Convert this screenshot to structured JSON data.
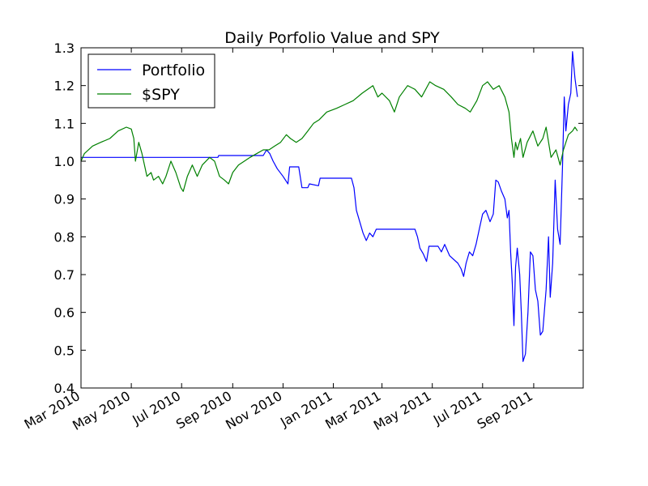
{
  "chart_data": {
    "type": "line",
    "title": "Daily Porfolio Value and SPY",
    "xlabel": "",
    "ylabel": "",
    "ylim": [
      0.4,
      1.3
    ],
    "yticks": [
      "0.4",
      "0.5",
      "0.6",
      "0.7",
      "0.8",
      "0.9",
      "1.0",
      "1.1",
      "1.2",
      "1.3"
    ],
    "xlim": [
      "2010-03-01",
      "2011-10-31"
    ],
    "xticks": [
      {
        "date": "2010-03-01",
        "label": "Mar 2010"
      },
      {
        "date": "2010-05-01",
        "label": "May 2010"
      },
      {
        "date": "2010-07-01",
        "label": "Jul 2010"
      },
      {
        "date": "2010-09-01",
        "label": "Sep 2010"
      },
      {
        "date": "2010-11-01",
        "label": "Nov 2010"
      },
      {
        "date": "2011-01-01",
        "label": "Jan 2011"
      },
      {
        "date": "2011-03-01",
        "label": "Mar 2011"
      },
      {
        "date": "2011-05-01",
        "label": "May 2011"
      },
      {
        "date": "2011-07-01",
        "label": "Jul 2011"
      },
      {
        "date": "2011-09-01",
        "label": "Sep 2011"
      }
    ],
    "grid": false,
    "legend_position": "top-left",
    "series": [
      {
        "name": "Portfolio",
        "color": "#0000ff",
        "points": [
          [
            "2010-03-01",
            1.01
          ],
          [
            "2010-08-14",
            1.01
          ],
          [
            "2010-08-15",
            1.015
          ],
          [
            "2010-10-08",
            1.015
          ],
          [
            "2010-10-12",
            1.03
          ],
          [
            "2010-10-16",
            1.02
          ],
          [
            "2010-10-20",
            1.0
          ],
          [
            "2010-10-25",
            0.98
          ],
          [
            "2010-11-01",
            0.96
          ],
          [
            "2010-11-07",
            0.94
          ],
          [
            "2010-11-09",
            0.985
          ],
          [
            "2010-11-20",
            0.985
          ],
          [
            "2010-11-24",
            0.93
          ],
          [
            "2010-12-01",
            0.93
          ],
          [
            "2010-12-03",
            0.94
          ],
          [
            "2010-12-14",
            0.935
          ],
          [
            "2010-12-16",
            0.955
          ],
          [
            "2011-01-23",
            0.955
          ],
          [
            "2011-01-26",
            0.93
          ],
          [
            "2011-01-29",
            0.87
          ],
          [
            "2011-02-02",
            0.84
          ],
          [
            "2011-02-06",
            0.81
          ],
          [
            "2011-02-10",
            0.79
          ],
          [
            "2011-02-14",
            0.81
          ],
          [
            "2011-02-18",
            0.8
          ],
          [
            "2011-02-22",
            0.82
          ],
          [
            "2011-04-10",
            0.82
          ],
          [
            "2011-04-13",
            0.8
          ],
          [
            "2011-04-16",
            0.77
          ],
          [
            "2011-04-20",
            0.755
          ],
          [
            "2011-04-24",
            0.735
          ],
          [
            "2011-04-27",
            0.775
          ],
          [
            "2011-05-08",
            0.775
          ],
          [
            "2011-05-12",
            0.76
          ],
          [
            "2011-05-16",
            0.78
          ],
          [
            "2011-05-22",
            0.75
          ],
          [
            "2011-06-01",
            0.73
          ],
          [
            "2011-06-05",
            0.715
          ],
          [
            "2011-06-08",
            0.695
          ],
          [
            "2011-06-11",
            0.73
          ],
          [
            "2011-06-15",
            0.76
          ],
          [
            "2011-06-19",
            0.75
          ],
          [
            "2011-06-23",
            0.78
          ],
          [
            "2011-06-27",
            0.82
          ],
          [
            "2011-07-01",
            0.86
          ],
          [
            "2011-07-05",
            0.87
          ],
          [
            "2011-07-10",
            0.84
          ],
          [
            "2011-07-14",
            0.86
          ],
          [
            "2011-07-17",
            0.95
          ],
          [
            "2011-07-20",
            0.945
          ],
          [
            "2011-07-24",
            0.92
          ],
          [
            "2011-07-28",
            0.9
          ],
          [
            "2011-07-31",
            0.85
          ],
          [
            "2011-08-02",
            0.87
          ],
          [
            "2011-08-04",
            0.76
          ],
          [
            "2011-08-06",
            0.68
          ],
          [
            "2011-08-08",
            0.565
          ],
          [
            "2011-08-10",
            0.72
          ],
          [
            "2011-08-12",
            0.77
          ],
          [
            "2011-08-15",
            0.7
          ],
          [
            "2011-08-17",
            0.6
          ],
          [
            "2011-08-19",
            0.47
          ],
          [
            "2011-08-22",
            0.49
          ],
          [
            "2011-08-25",
            0.6
          ],
          [
            "2011-08-28",
            0.76
          ],
          [
            "2011-08-31",
            0.75
          ],
          [
            "2011-09-03",
            0.66
          ],
          [
            "2011-09-06",
            0.63
          ],
          [
            "2011-09-09",
            0.54
          ],
          [
            "2011-09-12",
            0.55
          ],
          [
            "2011-09-16",
            0.66
          ],
          [
            "2011-09-19",
            0.8
          ],
          [
            "2011-09-21",
            0.64
          ],
          [
            "2011-09-24",
            0.73
          ],
          [
            "2011-09-27",
            0.95
          ],
          [
            "2011-09-30",
            0.82
          ],
          [
            "2011-10-03",
            0.78
          ],
          [
            "2011-10-06",
            0.99
          ],
          [
            "2011-10-08",
            1.17
          ],
          [
            "2011-10-10",
            1.08
          ],
          [
            "2011-10-13",
            1.15
          ],
          [
            "2011-10-16",
            1.18
          ],
          [
            "2011-10-18",
            1.29
          ],
          [
            "2011-10-21",
            1.22
          ],
          [
            "2011-10-24",
            1.17
          ]
        ]
      },
      {
        "name": "$SPY",
        "color": "#008000",
        "points": [
          [
            "2010-03-01",
            1.0
          ],
          [
            "2010-03-05",
            1.02
          ],
          [
            "2010-03-15",
            1.04
          ],
          [
            "2010-03-25",
            1.05
          ],
          [
            "2010-04-05",
            1.06
          ],
          [
            "2010-04-15",
            1.08
          ],
          [
            "2010-04-25",
            1.09
          ],
          [
            "2010-05-01",
            1.085
          ],
          [
            "2010-05-04",
            1.06
          ],
          [
            "2010-05-06",
            1.0
          ],
          [
            "2010-05-10",
            1.05
          ],
          [
            "2010-05-14",
            1.02
          ],
          [
            "2010-05-20",
            0.96
          ],
          [
            "2010-05-25",
            0.97
          ],
          [
            "2010-05-28",
            0.95
          ],
          [
            "2010-06-03",
            0.96
          ],
          [
            "2010-06-08",
            0.94
          ],
          [
            "2010-06-12",
            0.96
          ],
          [
            "2010-06-18",
            1.0
          ],
          [
            "2010-06-24",
            0.97
          ],
          [
            "2010-06-30",
            0.93
          ],
          [
            "2010-07-03",
            0.92
          ],
          [
            "2010-07-08",
            0.96
          ],
          [
            "2010-07-14",
            0.99
          ],
          [
            "2010-07-20",
            0.96
          ],
          [
            "2010-07-26",
            0.99
          ],
          [
            "2010-08-04",
            1.01
          ],
          [
            "2010-08-10",
            1.0
          ],
          [
            "2010-08-16",
            0.96
          ],
          [
            "2010-08-22",
            0.95
          ],
          [
            "2010-08-27",
            0.94
          ],
          [
            "2010-09-01",
            0.97
          ],
          [
            "2010-09-08",
            0.99
          ],
          [
            "2010-09-15",
            1.0
          ],
          [
            "2010-09-22",
            1.01
          ],
          [
            "2010-09-30",
            1.02
          ],
          [
            "2010-10-08",
            1.03
          ],
          [
            "2010-10-15",
            1.03
          ],
          [
            "2010-10-22",
            1.04
          ],
          [
            "2010-10-29",
            1.05
          ],
          [
            "2010-11-05",
            1.07
          ],
          [
            "2010-11-10",
            1.06
          ],
          [
            "2010-11-17",
            1.05
          ],
          [
            "2010-11-24",
            1.06
          ],
          [
            "2010-12-01",
            1.08
          ],
          [
            "2010-12-08",
            1.1
          ],
          [
            "2010-12-15",
            1.11
          ],
          [
            "2010-12-24",
            1.13
          ],
          [
            "2011-01-05",
            1.14
          ],
          [
            "2011-01-15",
            1.15
          ],
          [
            "2011-01-25",
            1.16
          ],
          [
            "2011-02-05",
            1.18
          ],
          [
            "2011-02-18",
            1.2
          ],
          [
            "2011-02-24",
            1.17
          ],
          [
            "2011-03-01",
            1.18
          ],
          [
            "2011-03-10",
            1.16
          ],
          [
            "2011-03-16",
            1.13
          ],
          [
            "2011-03-22",
            1.17
          ],
          [
            "2011-04-01",
            1.2
          ],
          [
            "2011-04-10",
            1.19
          ],
          [
            "2011-04-18",
            1.17
          ],
          [
            "2011-04-28",
            1.21
          ],
          [
            "2011-05-05",
            1.2
          ],
          [
            "2011-05-15",
            1.19
          ],
          [
            "2011-05-24",
            1.17
          ],
          [
            "2011-06-01",
            1.15
          ],
          [
            "2011-06-10",
            1.14
          ],
          [
            "2011-06-16",
            1.13
          ],
          [
            "2011-06-24",
            1.16
          ],
          [
            "2011-07-01",
            1.2
          ],
          [
            "2011-07-07",
            1.21
          ],
          [
            "2011-07-14",
            1.19
          ],
          [
            "2011-07-21",
            1.2
          ],
          [
            "2011-07-28",
            1.17
          ],
          [
            "2011-08-02",
            1.13
          ],
          [
            "2011-08-05",
            1.06
          ],
          [
            "2011-08-08",
            1.01
          ],
          [
            "2011-08-10",
            1.05
          ],
          [
            "2011-08-12",
            1.03
          ],
          [
            "2011-08-16",
            1.06
          ],
          [
            "2011-08-19",
            1.01
          ],
          [
            "2011-08-24",
            1.05
          ],
          [
            "2011-08-31",
            1.08
          ],
          [
            "2011-09-06",
            1.04
          ],
          [
            "2011-09-12",
            1.06
          ],
          [
            "2011-09-16",
            1.09
          ],
          [
            "2011-09-22",
            1.01
          ],
          [
            "2011-09-28",
            1.03
          ],
          [
            "2011-10-03",
            0.99
          ],
          [
            "2011-10-07",
            1.03
          ],
          [
            "2011-10-13",
            1.07
          ],
          [
            "2011-10-18",
            1.08
          ],
          [
            "2011-10-21",
            1.09
          ],
          [
            "2011-10-24",
            1.08
          ]
        ]
      }
    ]
  }
}
